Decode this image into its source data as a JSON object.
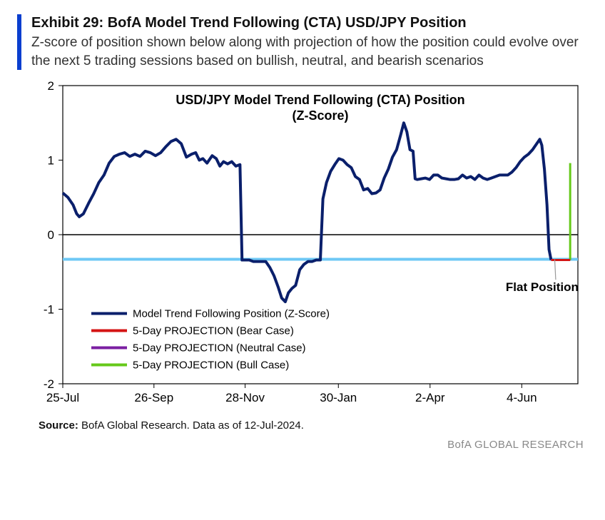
{
  "header": {
    "title": "Exhibit 29: BofA Model Trend Following (CTA) USD/JPY Position",
    "subtitle": "Z-score of position shown below along with projection of how the position could evolve over the next 5 trading sessions based on bullish, neutral, and bearish scenarios"
  },
  "chart": {
    "type": "line",
    "title_line1": "USD/JPY Model Trend Following (CTA) Position",
    "title_line2": "(Z-Score)",
    "title_fontsize": 18,
    "background_color": "#ffffff",
    "border_color": "#000000",
    "axis_fontsize": 17,
    "label_fontsize": 15,
    "y_axis": {
      "min": -2,
      "max": 2,
      "ticks": [
        -2,
        -1,
        0,
        1,
        2
      ],
      "zero_line_color": "#000000",
      "zero_line_width": 1.5
    },
    "x_axis": {
      "labels": [
        "25-Jul",
        "26-Sep",
        "28-Nov",
        "30-Jan",
        "2-Apr",
        "4-Jun"
      ],
      "positions": [
        0,
        0.177,
        0.354,
        0.535,
        0.713,
        0.891
      ]
    },
    "flat_line": {
      "value": -0.33,
      "color": "#6ec8f5",
      "width": 4,
      "label": "Flat Position"
    },
    "series": {
      "name": "Model Trend Following Position (Z-Score)",
      "color": "#0a1f6b",
      "width": 4,
      "data": [
        [
          0.0,
          0.56
        ],
        [
          0.01,
          0.5
        ],
        [
          0.02,
          0.4
        ],
        [
          0.027,
          0.28
        ],
        [
          0.032,
          0.24
        ],
        [
          0.04,
          0.28
        ],
        [
          0.05,
          0.42
        ],
        [
          0.06,
          0.55
        ],
        [
          0.07,
          0.7
        ],
        [
          0.08,
          0.8
        ],
        [
          0.09,
          0.96
        ],
        [
          0.1,
          1.05
        ],
        [
          0.11,
          1.08
        ],
        [
          0.12,
          1.1
        ],
        [
          0.13,
          1.05
        ],
        [
          0.14,
          1.08
        ],
        [
          0.15,
          1.05
        ],
        [
          0.16,
          1.12
        ],
        [
          0.17,
          1.1
        ],
        [
          0.18,
          1.06
        ],
        [
          0.19,
          1.1
        ],
        [
          0.2,
          1.18
        ],
        [
          0.21,
          1.25
        ],
        [
          0.22,
          1.28
        ],
        [
          0.23,
          1.22
        ],
        [
          0.24,
          1.04
        ],
        [
          0.25,
          1.08
        ],
        [
          0.258,
          1.1
        ],
        [
          0.265,
          1.0
        ],
        [
          0.272,
          1.02
        ],
        [
          0.28,
          0.96
        ],
        [
          0.29,
          1.06
        ],
        [
          0.298,
          1.02
        ],
        [
          0.305,
          0.92
        ],
        [
          0.312,
          0.98
        ],
        [
          0.32,
          0.95
        ],
        [
          0.328,
          0.98
        ],
        [
          0.336,
          0.92
        ],
        [
          0.344,
          0.94
        ],
        [
          0.348,
          -0.34
        ],
        [
          0.355,
          -0.34
        ],
        [
          0.362,
          -0.34
        ],
        [
          0.37,
          -0.36
        ],
        [
          0.378,
          -0.36
        ],
        [
          0.386,
          -0.36
        ],
        [
          0.394,
          -0.36
        ],
        [
          0.402,
          -0.44
        ],
        [
          0.41,
          -0.55
        ],
        [
          0.418,
          -0.7
        ],
        [
          0.425,
          -0.85
        ],
        [
          0.432,
          -0.9
        ],
        [
          0.438,
          -0.78
        ],
        [
          0.445,
          -0.72
        ],
        [
          0.452,
          -0.68
        ],
        [
          0.46,
          -0.47
        ],
        [
          0.468,
          -0.4
        ],
        [
          0.476,
          -0.36
        ],
        [
          0.484,
          -0.36
        ],
        [
          0.492,
          -0.34
        ],
        [
          0.5,
          -0.34
        ],
        [
          0.505,
          0.48
        ],
        [
          0.512,
          0.7
        ],
        [
          0.52,
          0.85
        ],
        [
          0.528,
          0.94
        ],
        [
          0.536,
          1.02
        ],
        [
          0.544,
          1.0
        ],
        [
          0.552,
          0.94
        ],
        [
          0.56,
          0.9
        ],
        [
          0.568,
          0.78
        ],
        [
          0.576,
          0.74
        ],
        [
          0.584,
          0.6
        ],
        [
          0.592,
          0.62
        ],
        [
          0.6,
          0.55
        ],
        [
          0.608,
          0.56
        ],
        [
          0.616,
          0.6
        ],
        [
          0.624,
          0.76
        ],
        [
          0.632,
          0.88
        ],
        [
          0.64,
          1.04
        ],
        [
          0.648,
          1.14
        ],
        [
          0.656,
          1.34
        ],
        [
          0.662,
          1.5
        ],
        [
          0.668,
          1.38
        ],
        [
          0.674,
          1.14
        ],
        [
          0.68,
          1.12
        ],
        [
          0.684,
          0.75
        ],
        [
          0.688,
          0.74
        ],
        [
          0.696,
          0.75
        ],
        [
          0.704,
          0.76
        ],
        [
          0.712,
          0.74
        ],
        [
          0.72,
          0.8
        ],
        [
          0.728,
          0.8
        ],
        [
          0.736,
          0.76
        ],
        [
          0.744,
          0.75
        ],
        [
          0.752,
          0.74
        ],
        [
          0.76,
          0.74
        ],
        [
          0.768,
          0.75
        ],
        [
          0.776,
          0.8
        ],
        [
          0.784,
          0.76
        ],
        [
          0.792,
          0.78
        ],
        [
          0.8,
          0.74
        ],
        [
          0.808,
          0.8
        ],
        [
          0.816,
          0.76
        ],
        [
          0.824,
          0.74
        ],
        [
          0.832,
          0.76
        ],
        [
          0.84,
          0.78
        ],
        [
          0.848,
          0.8
        ],
        [
          0.856,
          0.8
        ],
        [
          0.864,
          0.8
        ],
        [
          0.872,
          0.84
        ],
        [
          0.88,
          0.9
        ],
        [
          0.888,
          0.98
        ],
        [
          0.896,
          1.04
        ],
        [
          0.904,
          1.08
        ],
        [
          0.912,
          1.14
        ],
        [
          0.92,
          1.22
        ],
        [
          0.926,
          1.28
        ],
        [
          0.93,
          1.2
        ],
        [
          0.935,
          0.88
        ],
        [
          0.94,
          0.4
        ],
        [
          0.944,
          -0.2
        ],
        [
          0.948,
          -0.34
        ]
      ]
    },
    "projections": {
      "x_range": [
        0.948,
        0.985
      ],
      "bear": {
        "color": "#d41414",
        "width": 3,
        "end_value": -0.34
      },
      "neutral": {
        "color": "#7b1fa2",
        "width": 3,
        "end_value": -0.34
      },
      "bull": {
        "color": "#66c91a",
        "width": 3,
        "end_value": 0.96
      }
    },
    "legend": {
      "items": [
        {
          "label": "Model Trend Following Position (Z-Score)",
          "color": "#0a1f6b"
        },
        {
          "label": "5-Day PROJECTION (Bear Case)",
          "color": "#d41414"
        },
        {
          "label": "5-Day PROJECTION (Neutral Case)",
          "color": "#7b1fa2"
        },
        {
          "label": "5-Day PROJECTION (Bull Case)",
          "color": "#66c91a"
        }
      ]
    }
  },
  "source": {
    "prefix": "Source:",
    "text": "BofA Global Research.  Data as of 12-Jul-2024."
  },
  "footer_brand": "BofA GLOBAL RESEARCH"
}
